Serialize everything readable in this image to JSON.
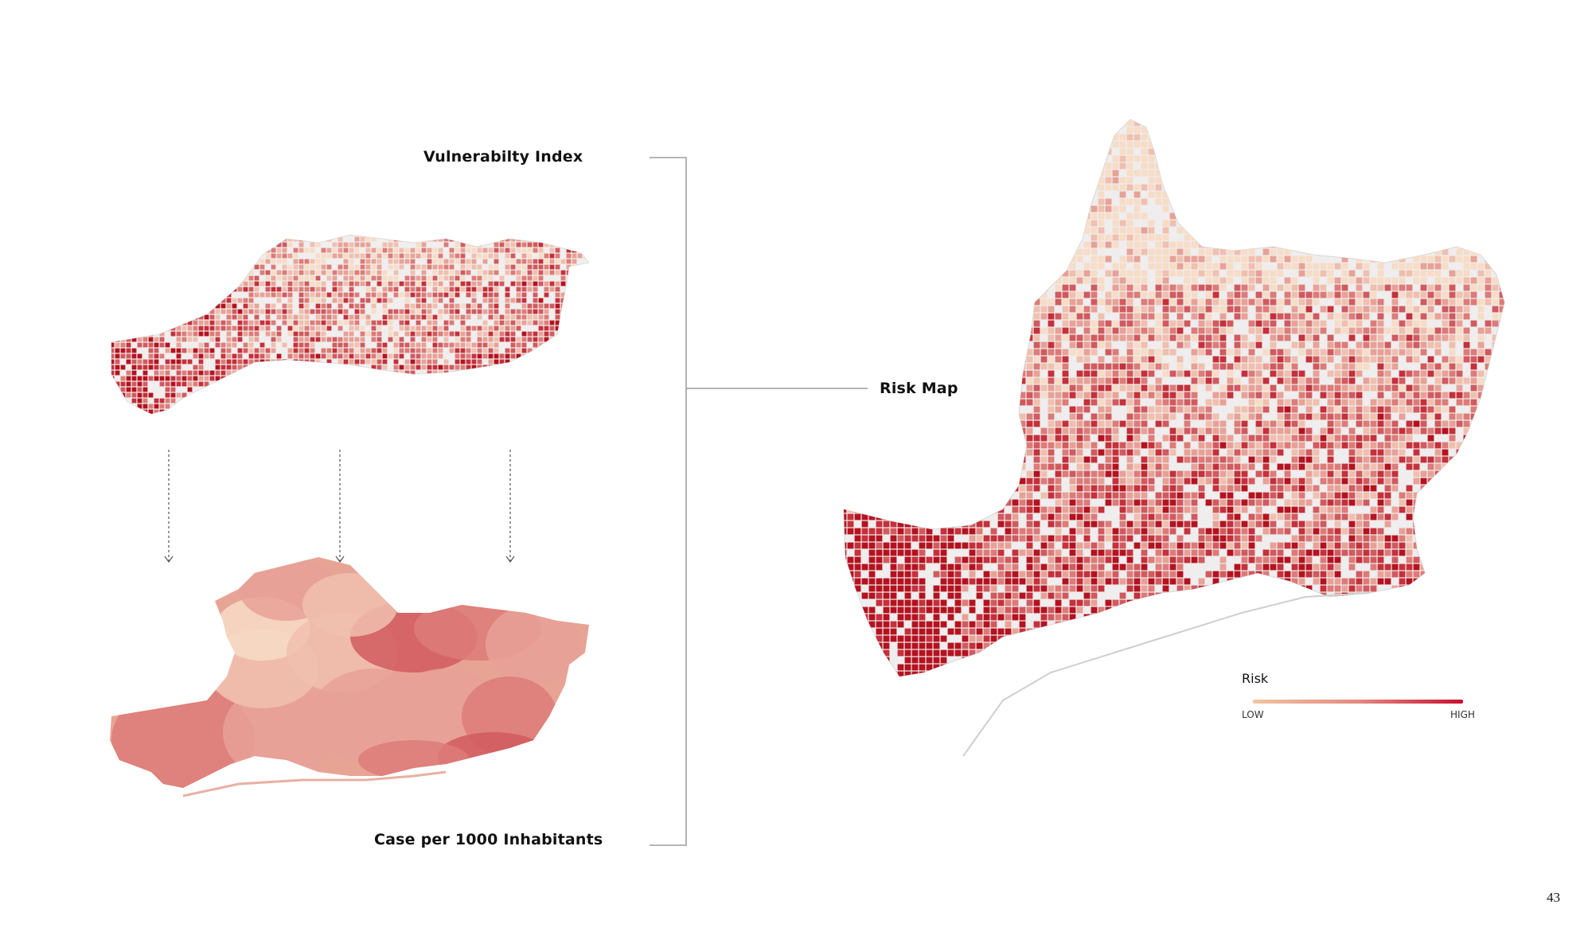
{
  "labels": {
    "vulnerability_index": "Vulnerabilty Index",
    "cases": "Case per 1000 Inhabitants",
    "risk_map": "Risk Map"
  },
  "legend": {
    "title": "Risk",
    "low": "LOW",
    "high": "HIGH",
    "colors": {
      "low": "#f2c4a0",
      "mid": "#e48a80",
      "high": "#c8102e"
    }
  },
  "page_number": "43",
  "colors": {
    "connector": "#8a8a8a",
    "arrow": "#555555",
    "map_base": "#eeeeee",
    "ramp": [
      "#f7dcc6",
      "#f0bfae",
      "#e8a196",
      "#dd7b78",
      "#d15a5e",
      "#c5303a",
      "#b5121f"
    ]
  }
}
